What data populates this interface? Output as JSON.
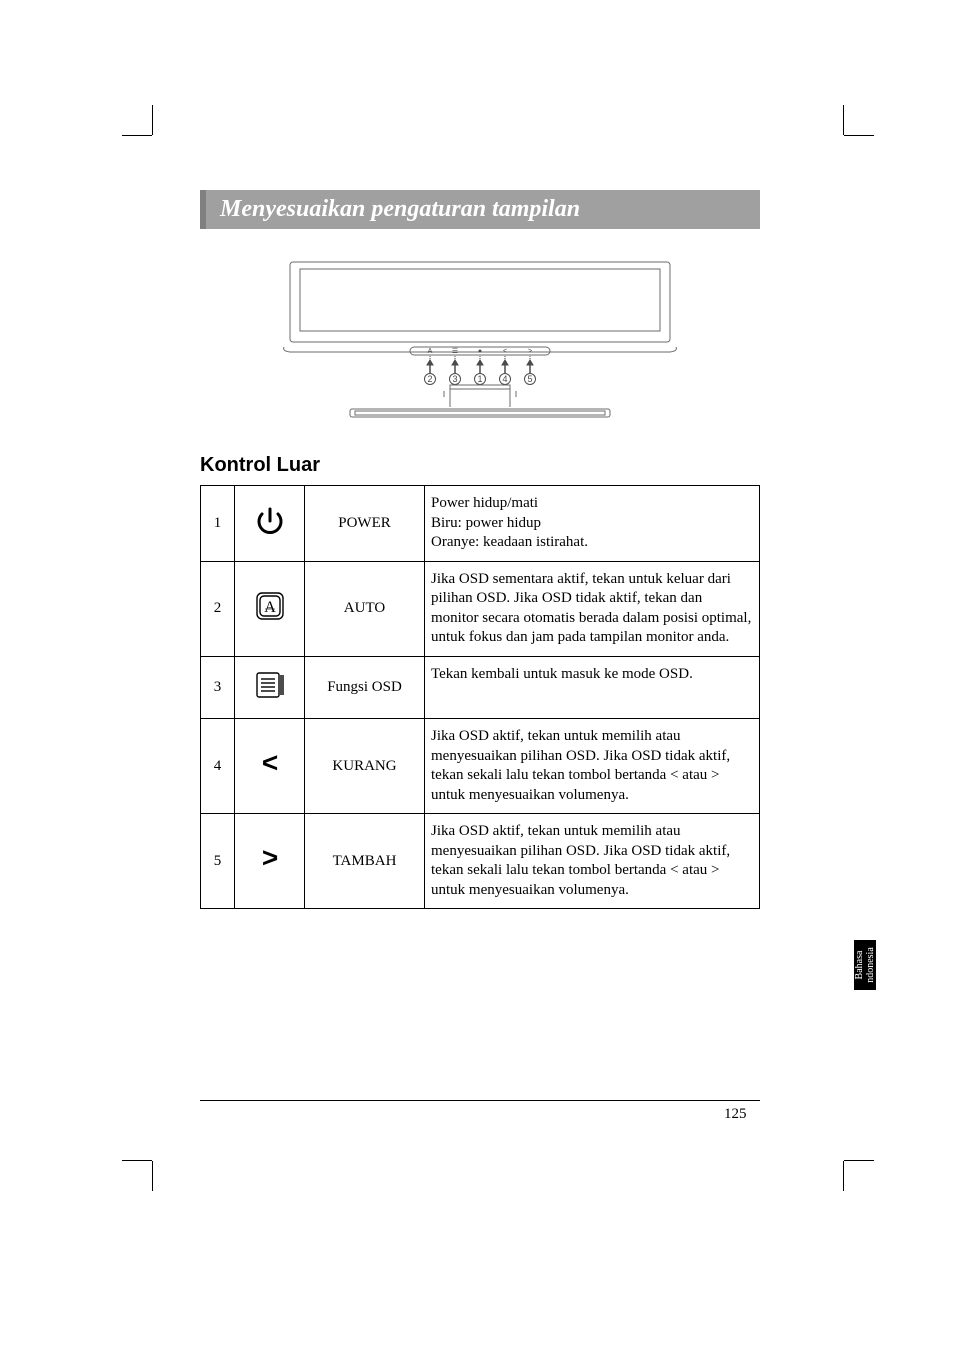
{
  "title": "Menyesuaikan pengaturan tampilan",
  "subheading": "Kontrol Luar",
  "page_number": "125",
  "side_tab_line1": "Bahasa",
  "side_tab_line2": "ndonesia",
  "diagram": {
    "panel_symbols": [
      "A",
      "☰",
      "●",
      "<",
      ">"
    ],
    "callouts": [
      "2",
      "3",
      "1",
      "4",
      "5"
    ],
    "stroke": "#6b6b6b"
  },
  "icons": {
    "power_stroke": "#000000",
    "auto_letter": "A",
    "less_symbol": "<",
    "more_symbol": ">"
  },
  "rows": [
    {
      "num": "1",
      "icon": "power",
      "name": "POWER",
      "desc_lines": [
        "Power hidup/mati",
        "Biru: power hidup",
        "Oranye: keadaan istirahat."
      ]
    },
    {
      "num": "2",
      "icon": "auto",
      "name": "AUTO",
      "desc_lines": [
        "Jika OSD sementara aktif, tekan untuk keluar dari pilihan OSD. Jika OSD tidak aktif, tekan dan monitor secara otomatis berada dalam posisi optimal, untuk fokus dan jam pada tampilan monitor anda."
      ]
    },
    {
      "num": "3",
      "icon": "menu",
      "name": "Fungsi OSD",
      "desc_lines": [
        "Tekan kembali untuk masuk ke mode OSD."
      ],
      "pad_bottom": true
    },
    {
      "num": "4",
      "icon": "less",
      "name": "KURANG",
      "desc_lines": [
        "Jika OSD aktif, tekan untuk memilih atau menyesuaikan pilihan OSD. Jika OSD tidak aktif, tekan sekali lalu  tekan tombol bertanda < atau > untuk menyesuaikan volumenya."
      ]
    },
    {
      "num": "5",
      "icon": "more",
      "name": "TAMBAH",
      "desc_lines": [
        "Jika OSD aktif, tekan untuk memilih atau menyesuaikan pilihan OSD. Jika OSD tidak aktif, tekan sekali lalu tekan tombol bertanda < atau > untuk menyesuaikan volumenya."
      ]
    }
  ]
}
